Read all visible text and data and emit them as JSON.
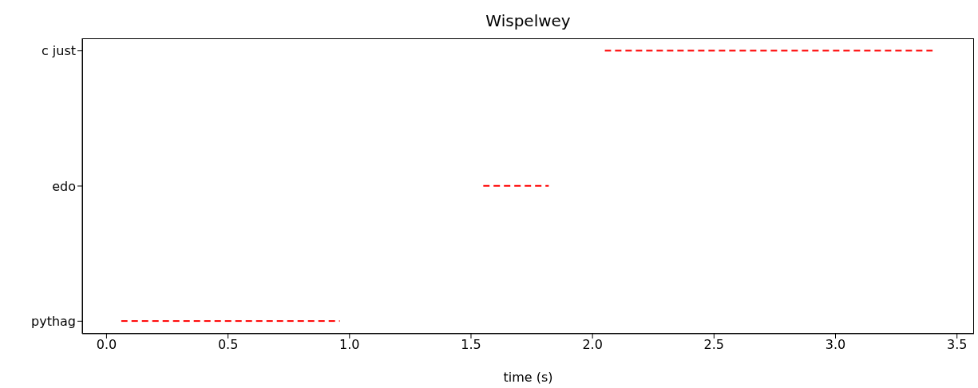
{
  "chart_data": {
    "type": "bar",
    "title": "Wispelwey",
    "xlabel": "time (s)",
    "orientation": "horizontal",
    "categories": [
      "c just",
      "edo",
      "pythag"
    ],
    "base": [
      2.05,
      1.55,
      0.06
    ],
    "values": [
      1.35,
      0.27,
      0.9
    ],
    "color": "#ff0000",
    "line_style": "dashed",
    "xlim": [
      -0.1,
      3.57
    ],
    "xticks": [
      {
        "value": 0,
        "label": "0.0"
      },
      0.5,
      {
        "value": 1,
        "label": "1.0"
      },
      1.5,
      {
        "value": 2,
        "label": "2.0"
      },
      2.5,
      {
        "value": 3,
        "label": "3.0"
      },
      3.5
    ]
  }
}
